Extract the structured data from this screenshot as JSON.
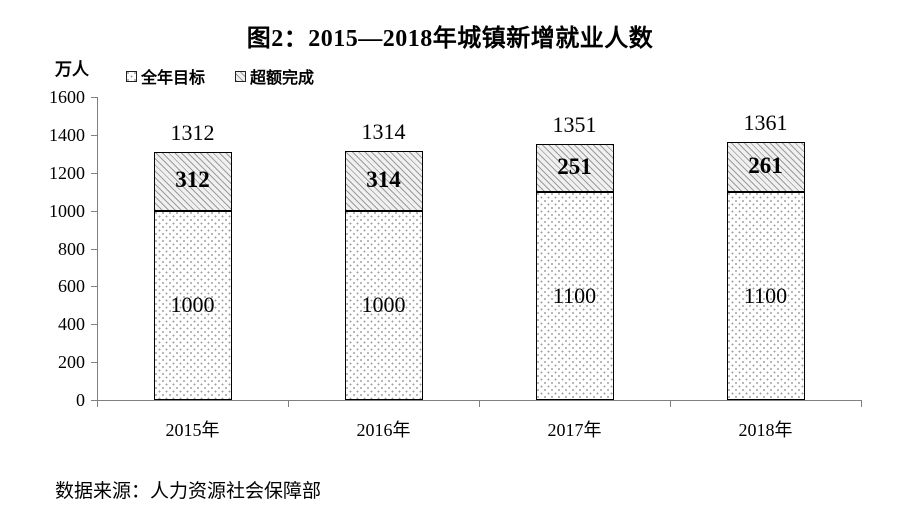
{
  "title": "图2：2015—2018年城镇新增就业人数",
  "y_axis_unit": "万人",
  "legend": {
    "items": [
      {
        "label": "全年目标",
        "pattern": "dotted"
      },
      {
        "label": "超额完成",
        "pattern": "hatched"
      }
    ]
  },
  "source": "数据来源：人力资源社会保障部",
  "colors": {
    "axis": "#808080",
    "bar_border": "#000000",
    "hatch_line": "#9c9c9c",
    "hatch_bg": "#f0f0f0",
    "dot_color": "#a0a0a0",
    "dot_bg": "#ffffff",
    "text": "#000000"
  },
  "chart_data": {
    "type": "bar",
    "stacked": true,
    "title": "图2：2015—2018年城镇新增就业人数",
    "ylabel": "万人",
    "categories": [
      "2015年",
      "2016年",
      "2017年",
      "2018年"
    ],
    "series": [
      {
        "name": "全年目标",
        "pattern": "dotted",
        "values": [
          1000,
          1000,
          1100,
          1100
        ]
      },
      {
        "name": "超额完成",
        "pattern": "hatched",
        "values": [
          312,
          314,
          251,
          261
        ]
      }
    ],
    "totals": [
      1312,
      1314,
      1351,
      1361
    ],
    "ylim": [
      0,
      1600
    ],
    "yticks": [
      0,
      200,
      400,
      600,
      800,
      1000,
      1200,
      1400,
      1600
    ],
    "grid": false,
    "legend_position": "top-left"
  }
}
